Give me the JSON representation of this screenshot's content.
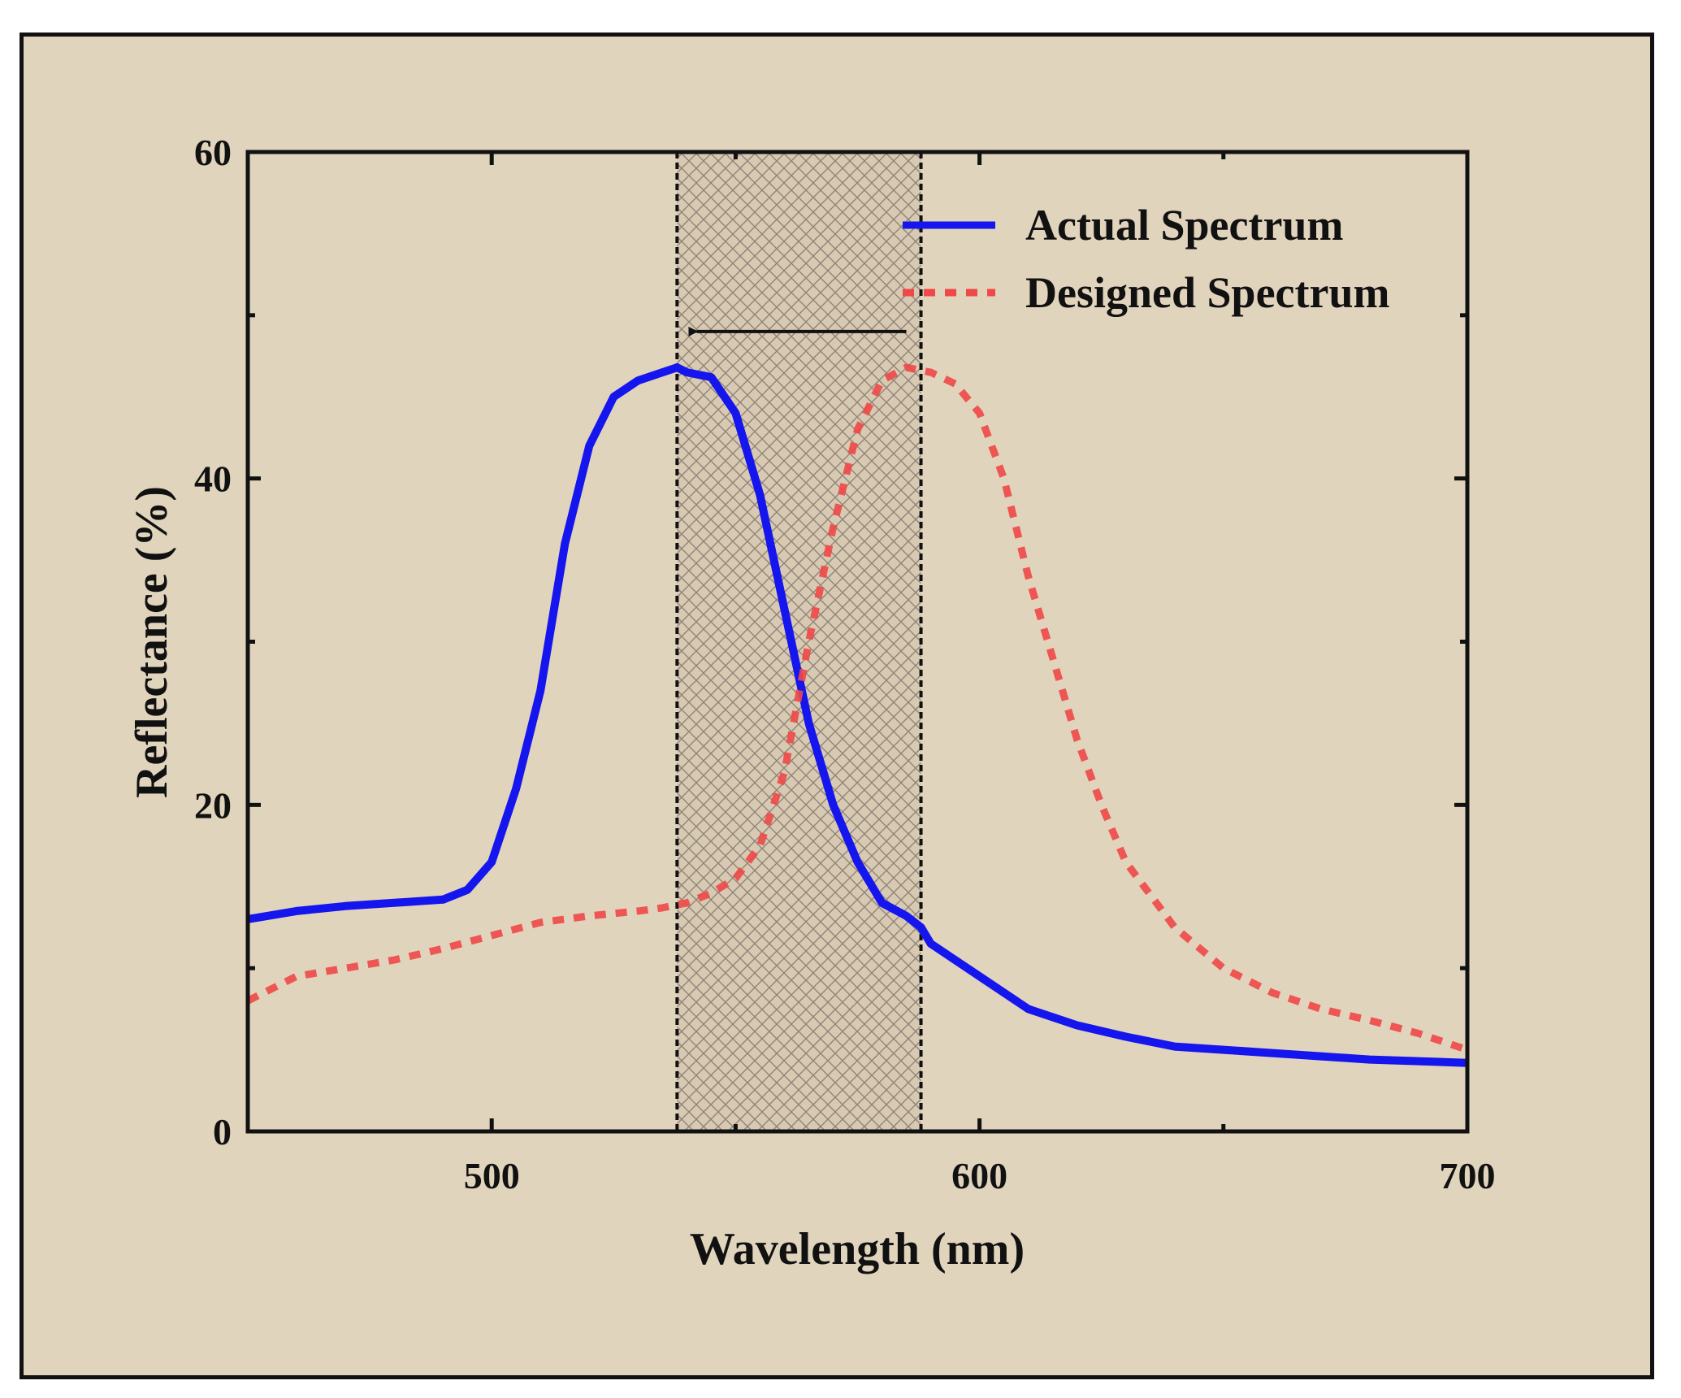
{
  "chart_data": {
    "type": "line",
    "xlabel": "Wavelength (nm)",
    "ylabel": "Reflectance (%)",
    "xlim": [
      450,
      700
    ],
    "ylim": [
      0,
      60
    ],
    "xticks": [
      500,
      600,
      700
    ],
    "yticks": [
      0,
      20,
      40,
      60
    ],
    "xtick_labels": [
      "500",
      "600",
      "700"
    ],
    "ytick_labels": [
      "0",
      "20",
      "40",
      "60"
    ],
    "legend_position": "top-right",
    "highlight_band": {
      "x_start": 538,
      "x_end": 588,
      "pattern": "crosshatch"
    },
    "annotation": {
      "type": "arrow",
      "direction": "left",
      "from_x": 585,
      "to_x": 542,
      "y": 49
    },
    "series": [
      {
        "name": "Actual Spectrum",
        "style": "solid",
        "color": "#1515ee",
        "x": [
          450,
          460,
          470,
          480,
          490,
          495,
          500,
          505,
          510,
          515,
          520,
          525,
          530,
          535,
          538,
          540,
          545,
          550,
          555,
          560,
          565,
          570,
          575,
          580,
          585,
          588,
          590,
          595,
          600,
          610,
          620,
          630,
          640,
          650,
          660,
          670,
          680,
          690,
          700
        ],
        "y": [
          13,
          13.5,
          13.8,
          14,
          14.2,
          14.8,
          16.5,
          21,
          27,
          36,
          42,
          45,
          46,
          46.5,
          46.8,
          46.5,
          46.2,
          44,
          39,
          32,
          25,
          20,
          16.5,
          14,
          13.2,
          12.5,
          11.5,
          10.5,
          9.5,
          7.5,
          6.5,
          5.8,
          5.2,
          5.0,
          4.8,
          4.6,
          4.4,
          4.3,
          4.2
        ]
      },
      {
        "name": "Designed Spectrum",
        "style": "dashed",
        "color": "#f04848",
        "x": [
          450,
          460,
          470,
          480,
          490,
          500,
          510,
          520,
          530,
          535,
          540,
          545,
          550,
          555,
          560,
          565,
          570,
          575,
          580,
          585,
          590,
          595,
          600,
          605,
          610,
          615,
          620,
          625,
          630,
          640,
          650,
          660,
          670,
          680,
          690,
          700
        ],
        "y": [
          8,
          9.5,
          10,
          10.5,
          11.2,
          12,
          12.8,
          13.2,
          13.5,
          13.7,
          14,
          14.6,
          15.5,
          17.5,
          22,
          30,
          37,
          43,
          46,
          46.8,
          46.5,
          45.8,
          44,
          40,
          34,
          29,
          24,
          20,
          16.5,
          12.5,
          10,
          8.5,
          7.5,
          6.8,
          6,
          5
        ]
      }
    ]
  }
}
